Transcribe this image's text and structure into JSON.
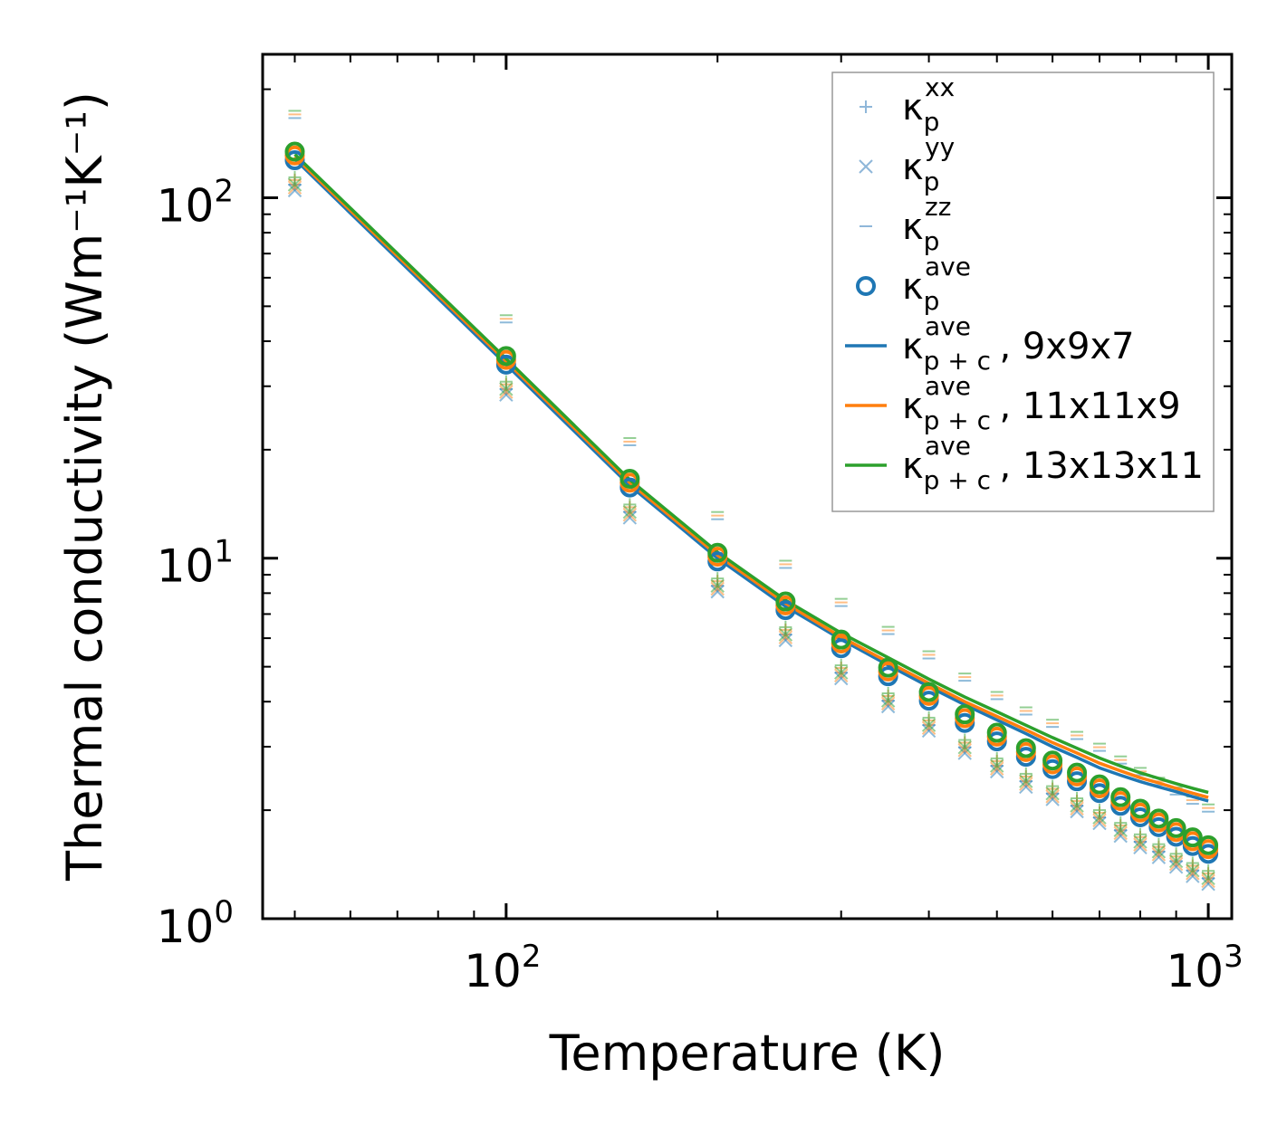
{
  "chart_data": {
    "type": "scatter",
    "title": "",
    "xlabel": "Temperature (K)",
    "ylabel": "Thermal conductivity (Wm⁻¹K⁻¹)",
    "xscale": "log",
    "yscale": "log",
    "xlim": [
      45,
      1080
    ],
    "ylim": [
      1,
      250
    ],
    "x_tick_labels": [
      {
        "value": 100,
        "base": "10",
        "exp": "2"
      },
      {
        "value": 1000,
        "base": "10",
        "exp": "3"
      }
    ],
    "y_tick_labels": [
      {
        "value": 1,
        "base": "10",
        "exp": "0"
      },
      {
        "value": 10,
        "base": "10",
        "exp": "1"
      },
      {
        "value": 100,
        "base": "10",
        "exp": "2"
      }
    ],
    "grid": false,
    "legend_position": "top-right",
    "x": [
      50,
      100,
      150,
      200,
      250,
      300,
      350,
      400,
      450,
      500,
      550,
      600,
      650,
      700,
      750,
      800,
      850,
      900,
      950,
      1000
    ],
    "ave_curve": [
      131,
      35.5,
      16.2,
      10.1,
      7.4,
      5.8,
      4.85,
      4.15,
      3.6,
      3.2,
      2.9,
      2.68,
      2.48,
      2.3,
      2.12,
      1.97,
      1.85,
      1.74,
      1.64,
      1.56
    ],
    "series_points": [
      {
        "name": "κp^xx, 9x9x7",
        "group": "xx",
        "color": "#1f77b4",
        "factor": 0.83
      },
      {
        "name": "κp^xx, 11x11x9",
        "group": "xx",
        "color": "#ff7f0e",
        "factor": 0.855
      },
      {
        "name": "κp^xx, 13x13x11",
        "group": "xx",
        "color": "#2ca02c",
        "factor": 0.87
      },
      {
        "name": "κp^yy, 9x9x7",
        "group": "yy",
        "color": "#1f77b4",
        "factor": 0.8
      },
      {
        "name": "κp^yy, 11x11x9",
        "group": "yy",
        "color": "#ff7f0e",
        "factor": 0.815
      },
      {
        "name": "κp^yy, 13x13x11",
        "group": "yy",
        "color": "#2ca02c",
        "factor": 0.83
      },
      {
        "name": "κp^zz, 9x9x7",
        "group": "zz",
        "color": "#1f77b4",
        "factor": 1.27
      },
      {
        "name": "κp^zz, 11x11x9",
        "group": "zz",
        "color": "#ff7f0e",
        "factor": 1.3
      },
      {
        "name": "κp^zz, 13x13x11",
        "group": "zz",
        "color": "#2ca02c",
        "factor": 1.33
      },
      {
        "name": "κp^ave, 9x9x7",
        "group": "ave",
        "color": "#1f77b4",
        "factor": 0.97
      },
      {
        "name": "κp^ave, 11x11x9",
        "group": "ave",
        "color": "#ff7f0e",
        "factor": 1.0
      },
      {
        "name": "κp^ave, 13x13x11",
        "group": "ave",
        "color": "#2ca02c",
        "factor": 1.025
      }
    ],
    "series_lines": [
      {
        "name": "κp+c^ave, 9x9x7",
        "color": "#1f77b4",
        "values": [
          128,
          34.5,
          15.9,
          10.0,
          7.35,
          5.95,
          5.05,
          4.4,
          3.92,
          3.56,
          3.26,
          3.0,
          2.8,
          2.62,
          2.5,
          2.4,
          2.32,
          2.25,
          2.18,
          2.12
        ]
      },
      {
        "name": "κp+c^ave, 11x11x9",
        "color": "#ff7f0e",
        "values": [
          130,
          35.2,
          16.2,
          10.2,
          7.5,
          6.05,
          5.15,
          4.5,
          4.0,
          3.64,
          3.34,
          3.08,
          2.88,
          2.7,
          2.57,
          2.46,
          2.38,
          2.3,
          2.23,
          2.17
        ]
      },
      {
        "name": "κp+c^ave, 13x13x11",
        "color": "#2ca02c",
        "values": [
          132,
          35.8,
          16.5,
          10.4,
          7.65,
          6.2,
          5.3,
          4.62,
          4.12,
          3.75,
          3.44,
          3.18,
          2.97,
          2.79,
          2.65,
          2.54,
          2.45,
          2.37,
          2.3,
          2.24
        ]
      }
    ],
    "legend": [
      {
        "kind": "plus",
        "color": "#8fb7d9",
        "sym": "κ",
        "sup": "xx",
        "sub": "p",
        "suffix": ""
      },
      {
        "kind": "x",
        "color": "#8fb7d9",
        "sym": "κ",
        "sup": "yy",
        "sub": "p",
        "suffix": ""
      },
      {
        "kind": "dash",
        "color": "#8fb7d9",
        "sym": "κ",
        "sup": "zz",
        "sub": "p",
        "suffix": ""
      },
      {
        "kind": "circle",
        "color": "#1f77b4",
        "sym": "κ",
        "sup": "ave",
        "sub": "p",
        "suffix": ""
      },
      {
        "kind": "line",
        "color": "#1f77b4",
        "sym": "κ",
        "sup": "ave",
        "sub": "p + c",
        "suffix": ", 9x9x7"
      },
      {
        "kind": "line",
        "color": "#ff7f0e",
        "sym": "κ",
        "sup": "ave",
        "sub": "p + c",
        "suffix": ", 11x11x9"
      },
      {
        "kind": "line",
        "color": "#2ca02c",
        "sym": "κ",
        "sup": "ave",
        "sub": "p + c",
        "suffix": ", 13x13x11"
      }
    ]
  }
}
